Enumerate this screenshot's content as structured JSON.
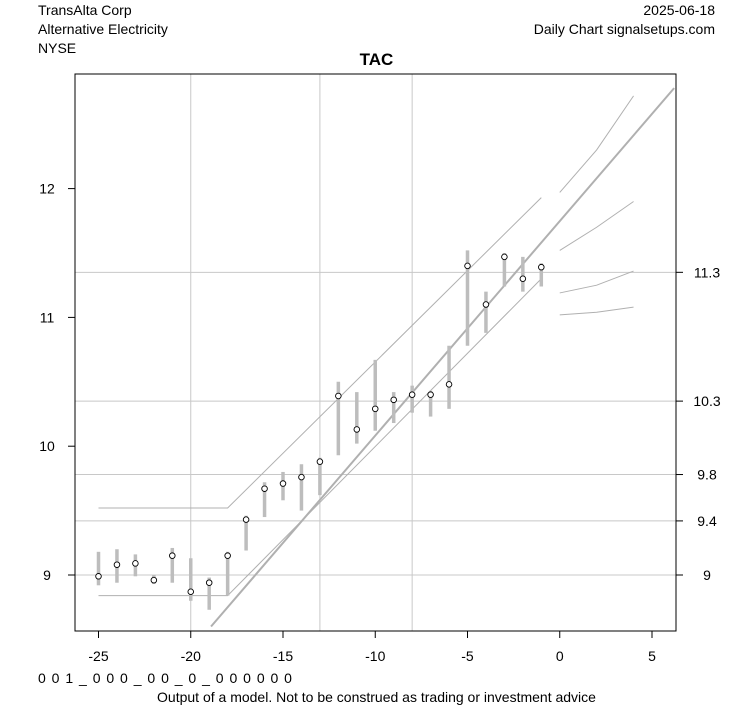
{
  "header": {
    "company": "TransAlta Corp",
    "sector": "Alternative Electricity",
    "exchange": "NYSE",
    "date": "2025-06-18",
    "source": "Daily Chart signalsetups.com"
  },
  "footer": {
    "codes": "0 0 1 _ 0 0 0 _ 0 0 _ 0 _ 0 0 0 0 0 0",
    "disclaimer": "Output of a model. Not to be construed as trading or investment advice"
  },
  "chart_data": {
    "type": "line",
    "title": "TAC",
    "xlim": [
      -26.5,
      6.2
    ],
    "ylim": [
      8.57,
      12.78
    ],
    "x_ticks": [
      -25,
      -20,
      -15,
      -10,
      -5,
      0,
      5
    ],
    "y_ticks_left": [
      9,
      10,
      11,
      12
    ],
    "y_ticks_right": [
      9,
      9.4,
      9.8,
      10.3,
      11.3
    ],
    "right_tick_values": [
      9.0,
      9.42,
      9.78,
      10.35,
      11.35
    ],
    "vertical_gridlines": [
      -20,
      -13,
      -8
    ],
    "grid_color": "#c8c8c8",
    "bar_color": "#bdbdbd",
    "line_color": "#b0b0b0",
    "ohlc_bars": [
      {
        "x": -25,
        "low": 8.92,
        "high": 9.18,
        "close": 8.99
      },
      {
        "x": -24,
        "low": 8.94,
        "high": 9.2,
        "close": 9.08
      },
      {
        "x": -23,
        "low": 8.99,
        "high": 9.16,
        "close": 9.09
      },
      {
        "x": -22,
        "low": 8.93,
        "high": 9.0,
        "close": 8.96
      },
      {
        "x": -21,
        "low": 8.94,
        "high": 9.21,
        "close": 9.15
      },
      {
        "x": -20,
        "low": 8.8,
        "high": 9.13,
        "close": 8.87
      },
      {
        "x": -19,
        "low": 8.73,
        "high": 8.98,
        "close": 8.94
      },
      {
        "x": -18,
        "low": 8.84,
        "high": 9.18,
        "close": 9.15
      },
      {
        "x": -17,
        "low": 9.19,
        "high": 9.46,
        "close": 9.43
      },
      {
        "x": -16,
        "low": 9.45,
        "high": 9.72,
        "close": 9.67
      },
      {
        "x": -15,
        "low": 9.58,
        "high": 9.8,
        "close": 9.71
      },
      {
        "x": -14,
        "low": 9.5,
        "high": 9.86,
        "close": 9.76
      },
      {
        "x": -13,
        "low": 9.62,
        "high": 9.91,
        "close": 9.88
      },
      {
        "x": -12,
        "low": 9.93,
        "high": 10.5,
        "close": 10.39
      },
      {
        "x": -11,
        "low": 10.02,
        "high": 10.42,
        "close": 10.13
      },
      {
        "x": -10,
        "low": 10.12,
        "high": 10.67,
        "close": 10.29
      },
      {
        "x": -9,
        "low": 10.18,
        "high": 10.42,
        "close": 10.36
      },
      {
        "x": -8,
        "low": 10.26,
        "high": 10.47,
        "close": 10.4
      },
      {
        "x": -7,
        "low": 10.23,
        "high": 10.43,
        "close": 10.4
      },
      {
        "x": -6,
        "low": 10.29,
        "high": 10.78,
        "close": 10.48
      },
      {
        "x": -5,
        "low": 10.78,
        "high": 11.52,
        "close": 11.4
      },
      {
        "x": -4,
        "low": 10.88,
        "high": 11.2,
        "close": 11.1
      },
      {
        "x": -3,
        "low": 11.24,
        "high": 11.5,
        "close": 11.47
      },
      {
        "x": -2,
        "low": 11.2,
        "high": 11.47,
        "close": 11.3
      },
      {
        "x": -1,
        "low": 11.24,
        "high": 11.42,
        "close": 11.39
      }
    ],
    "lines": [
      {
        "role": "trend",
        "width": 2,
        "points": [
          [
            -18.9,
            8.6
          ],
          [
            6.2,
            12.78
          ]
        ]
      },
      {
        "role": "upper-channel",
        "width": 1,
        "points": [
          [
            -25,
            9.52
          ],
          [
            -18,
            9.52
          ],
          [
            -1,
            11.93
          ]
        ]
      },
      {
        "role": "lower-channel",
        "width": 1,
        "points": [
          [
            -25,
            8.84
          ],
          [
            -18,
            8.84
          ],
          [
            -1,
            11.3
          ]
        ]
      },
      {
        "role": "forecast-1",
        "width": 1,
        "points": [
          [
            0,
            11.97
          ],
          [
            2,
            12.3
          ],
          [
            4,
            12.72
          ]
        ]
      },
      {
        "role": "forecast-2",
        "width": 1,
        "points": [
          [
            0,
            11.52
          ],
          [
            2,
            11.7
          ],
          [
            4,
            11.9
          ]
        ]
      },
      {
        "role": "forecast-3",
        "width": 1,
        "points": [
          [
            0,
            11.19
          ],
          [
            2,
            11.25
          ],
          [
            4,
            11.36
          ]
        ]
      },
      {
        "role": "forecast-4",
        "width": 1,
        "points": [
          [
            0,
            11.02
          ],
          [
            2,
            11.04
          ],
          [
            4,
            11.08
          ]
        ]
      }
    ]
  }
}
